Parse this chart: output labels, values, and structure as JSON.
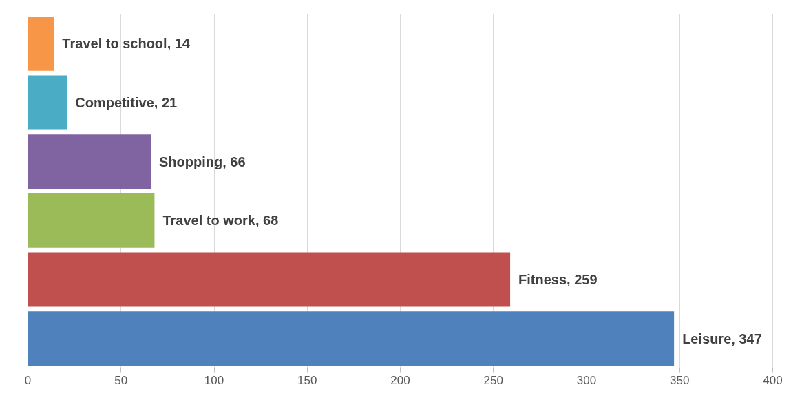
{
  "chart_data": {
    "type": "bar",
    "orientation": "horizontal",
    "categories": [
      null,
      null,
      null,
      null,
      null,
      null
    ],
    "values": [
      14,
      21,
      66,
      68,
      259,
      347
    ],
    "colors": [
      "#f79646",
      "#4bacc6",
      "#8064a2",
      "#9bbb59",
      "#c0504d",
      "#4f81bd"
    ],
    "value_labels": [
      "Travel to school, 14",
      "Competitive, 21",
      "Shopping, 66",
      "Travel to work, 68",
      "Fitness, 259",
      "Leisure, 347"
    ],
    "xlim": [
      0,
      400
    ],
    "xticks": [
      0,
      50,
      100,
      150,
      200,
      250,
      300,
      350,
      400
    ],
    "grid": "x",
    "tick_labels": "x"
  }
}
